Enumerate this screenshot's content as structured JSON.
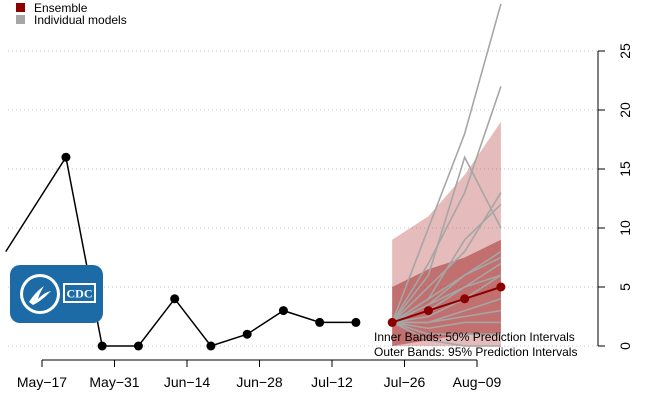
{
  "chart_data": {
    "type": "line",
    "title": "",
    "xlabel": "",
    "ylabel": "",
    "y_axis_position": "right",
    "ylim": [
      0,
      26.5
    ],
    "y_ticks": [
      0,
      5,
      10,
      15,
      20,
      25
    ],
    "x_tick_labels": [
      "May−17",
      "May−31",
      "Jun−14",
      "Jun−28",
      "Jul−12",
      "Jul−26",
      "Aug−09"
    ],
    "x_ticks_week_index": [
      0,
      2,
      4,
      6,
      8,
      10,
      12
    ],
    "grid": "dotted horizontal",
    "legend": {
      "placement": "top-left",
      "entries": [
        {
          "label": "Ensemble",
          "color": "#8b0000"
        },
        {
          "label": "Individual models",
          "color": "#a6a6a6"
        }
      ]
    },
    "annotations": [
      "Inner Bands: 50% Prediction Intervals",
      "Outer Bands: 95% Prediction Intervals"
    ],
    "observed": {
      "color": "#000000",
      "week_index": [
        -1,
        0.66,
        1.66,
        2.66,
        3.66,
        4.66,
        5.66,
        6.66,
        7.66,
        8.66
      ],
      "values": [
        8,
        16,
        0,
        0,
        4,
        0,
        1,
        3,
        2,
        2
      ]
    },
    "ensemble": {
      "color": "#8b0000",
      "week_index": [
        9.66,
        10.66,
        11.66,
        12.66
      ],
      "values": [
        2,
        3,
        4,
        5
      ],
      "pi50_lower": [
        0,
        0.5,
        1,
        1
      ],
      "pi50_upper": [
        5,
        6.5,
        7.5,
        9
      ],
      "pi95_lower": [
        0,
        0,
        0,
        0
      ],
      "pi95_upper": [
        9,
        11,
        14.5,
        19
      ]
    },
    "individual_models": {
      "color": "#a6a6a6",
      "week_index": [
        9.66,
        10.66,
        11.66,
        12.66
      ],
      "series": [
        [
          2,
          10,
          18,
          29
        ],
        [
          2,
          7,
          13,
          22
        ],
        [
          2,
          6,
          16,
          10
        ],
        [
          2,
          5,
          8,
          13
        ],
        [
          2,
          4,
          9,
          12
        ],
        [
          2,
          3.5,
          6,
          8
        ],
        [
          2,
          3,
          5,
          7
        ],
        [
          2,
          2.5,
          4,
          6
        ],
        [
          2,
          3,
          4,
          5
        ],
        [
          2,
          2,
          3,
          4
        ],
        [
          2,
          2,
          2.5,
          3
        ],
        [
          2,
          1.5,
          2,
          2
        ],
        [
          2,
          1,
          1,
          1
        ],
        [
          2,
          0.5,
          0,
          0
        ],
        [
          2,
          4,
          6,
          7.5
        ],
        [
          2,
          3.5,
          5,
          6
        ]
      ]
    }
  },
  "logo": {
    "text": "CDC",
    "background": "#1c6aa6"
  }
}
